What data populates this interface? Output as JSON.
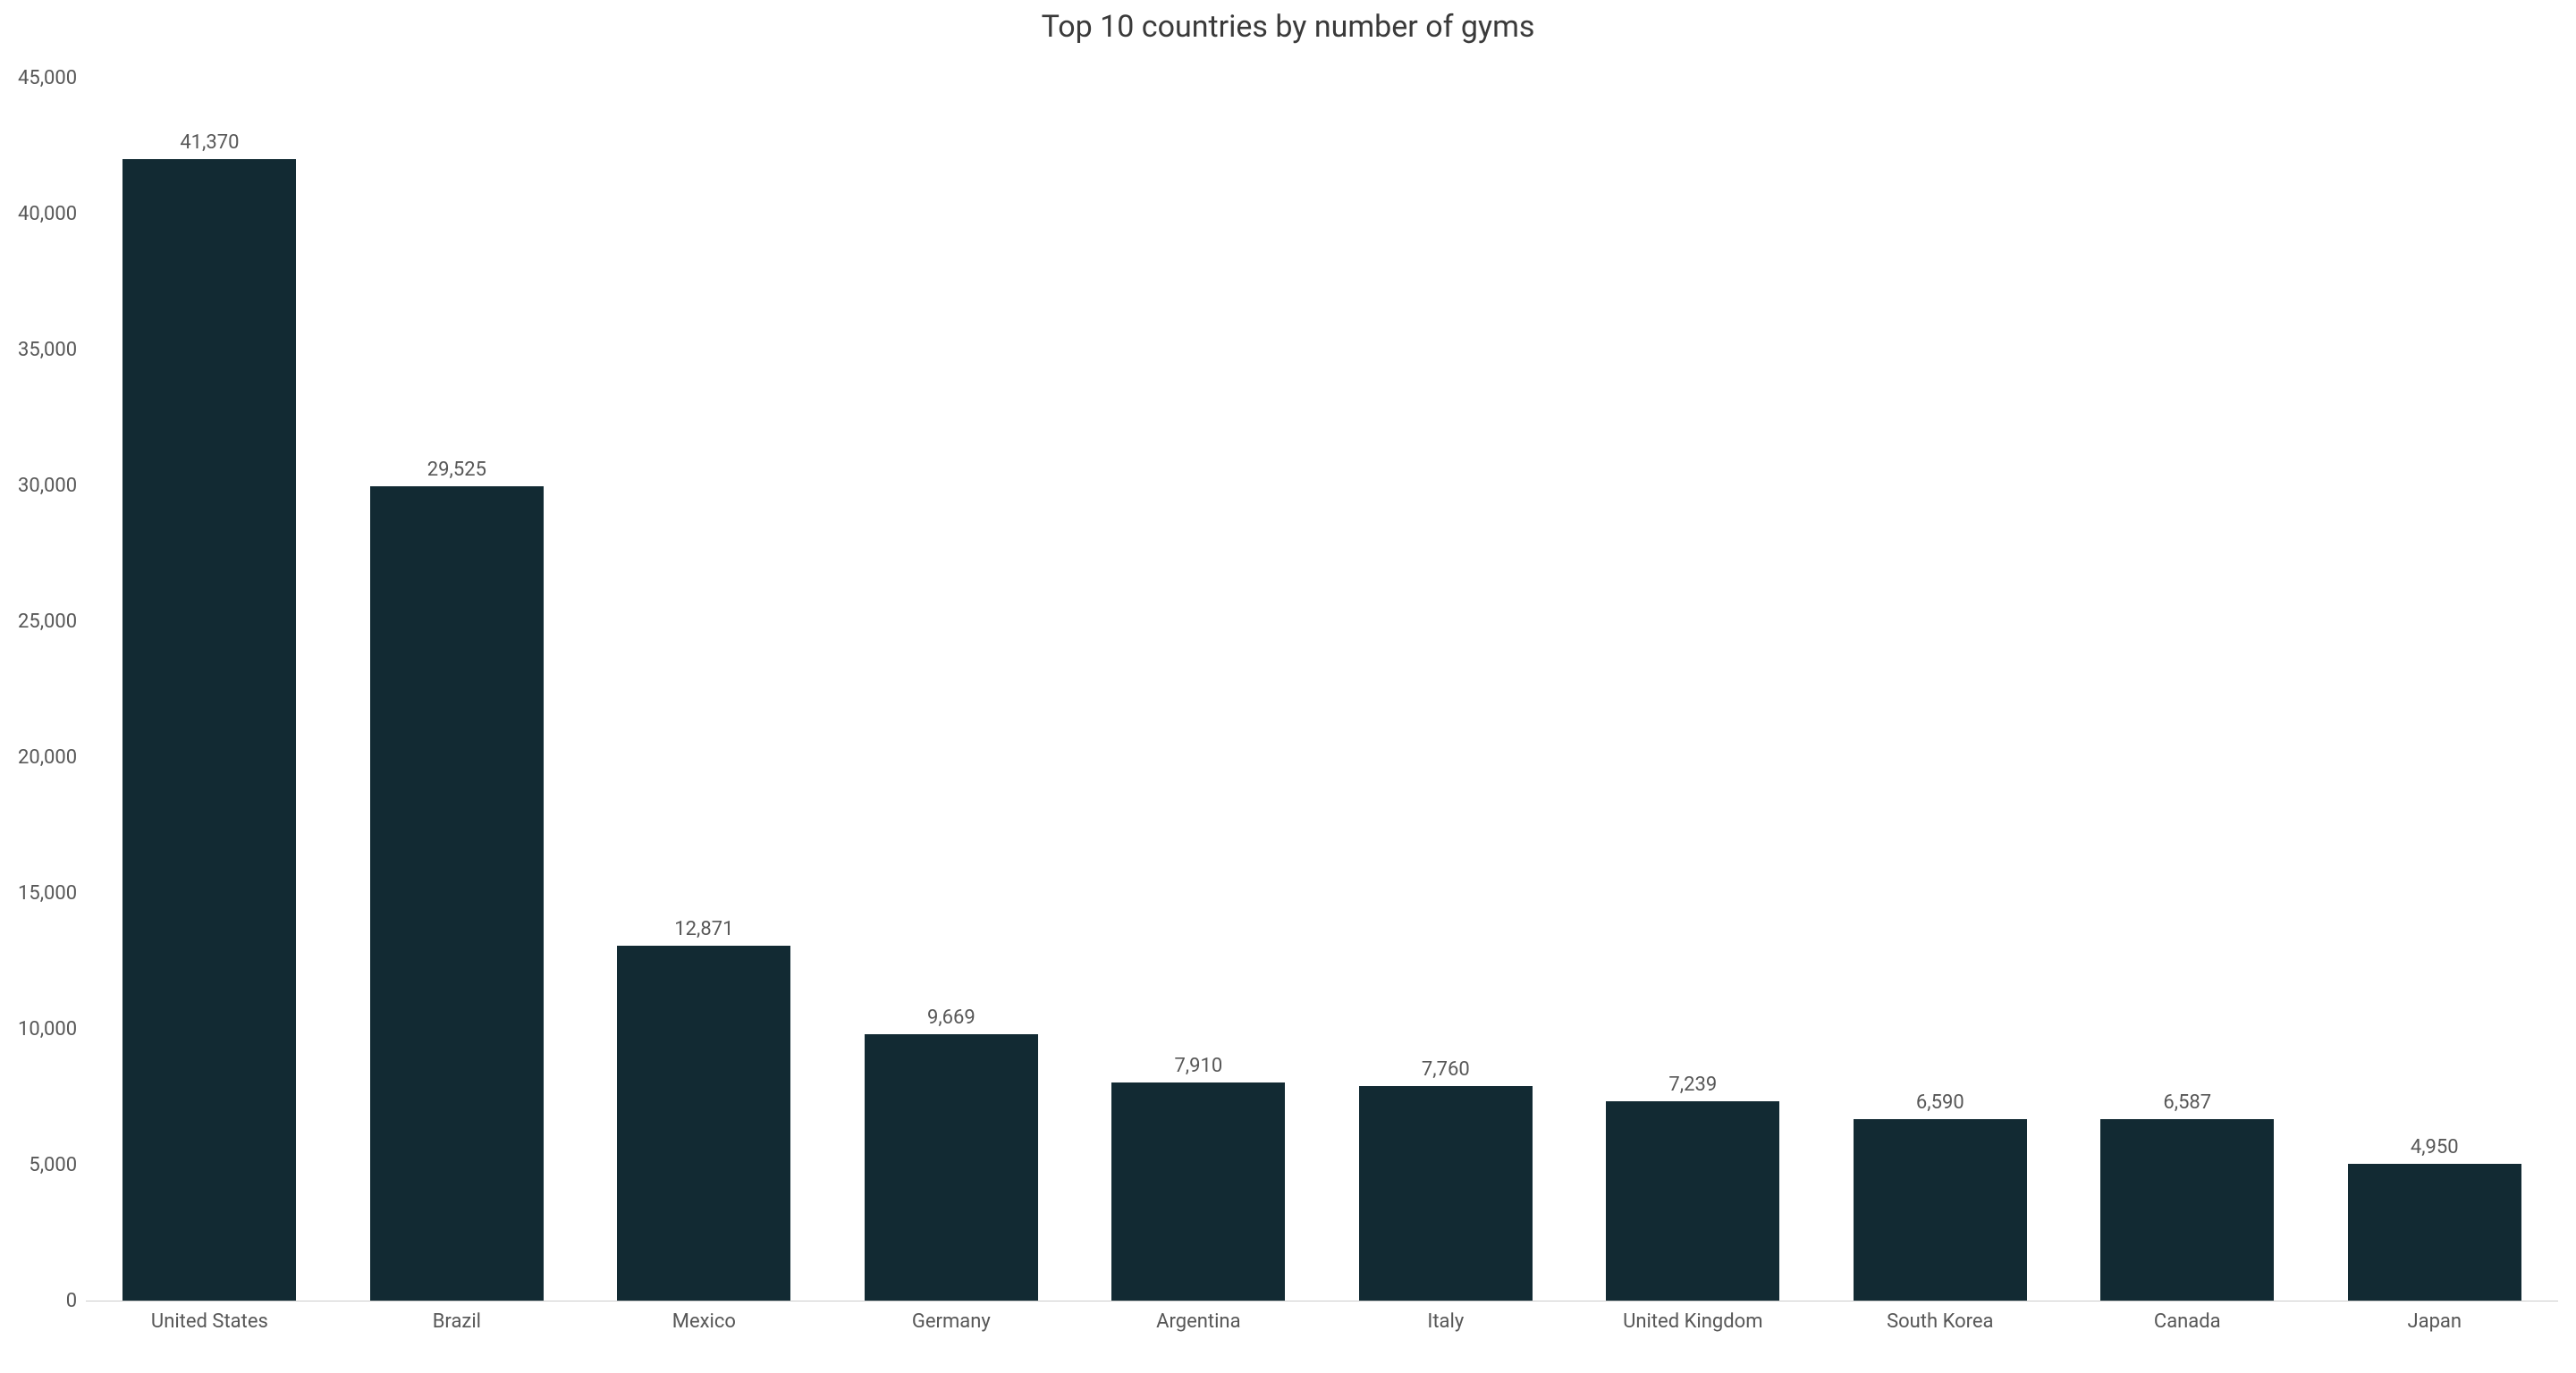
{
  "chart": {
    "type": "bar",
    "title": "Top 10 countries by number of gyms",
    "title_fontsize": 34,
    "title_color": "#3a3a3a",
    "background_color": "#ffffff",
    "bar_color": "#122a33",
    "axis_baseline_color": "#cccccc",
    "axis_label_color": "#575757",
    "tick_label_color": "#575757",
    "value_label_color": "#575757",
    "tick_fontsize": 22,
    "xlabel_fontsize": 22,
    "value_fontsize": 22,
    "bar_width_ratio": 0.78,
    "ylim": [
      0,
      45000
    ],
    "ytick_step": 5000,
    "yticks": [
      {
        "v": 45000,
        "label": "45,000"
      },
      {
        "v": 40000,
        "label": "40,000"
      },
      {
        "v": 35000,
        "label": "35,000"
      },
      {
        "v": 30000,
        "label": "30,000"
      },
      {
        "v": 25000,
        "label": "25,000"
      },
      {
        "v": 20000,
        "label": "20,000"
      },
      {
        "v": 15000,
        "label": "15,000"
      },
      {
        "v": 10000,
        "label": "10,000"
      },
      {
        "v": 5000,
        "label": "5,000"
      },
      {
        "v": 0,
        "label": "0"
      }
    ],
    "data": [
      {
        "category": "United States",
        "value": 41370,
        "value_label": "41,370"
      },
      {
        "category": "Brazil",
        "value": 29525,
        "value_label": "29,525"
      },
      {
        "category": "Mexico",
        "value": 12871,
        "value_label": "12,871"
      },
      {
        "category": "Germany",
        "value": 9669,
        "value_label": "9,669"
      },
      {
        "category": "Argentina",
        "value": 7910,
        "value_label": "7,910"
      },
      {
        "category": "Italy",
        "value": 7760,
        "value_label": "7,760"
      },
      {
        "category": "United Kingdom",
        "value": 7239,
        "value_label": "7,239"
      },
      {
        "category": "South Korea",
        "value": 6590,
        "value_label": "6,590"
      },
      {
        "category": "Canada",
        "value": 6587,
        "value_label": "6,587"
      },
      {
        "category": "Japan",
        "value": 4950,
        "value_label": "4,950"
      }
    ]
  }
}
